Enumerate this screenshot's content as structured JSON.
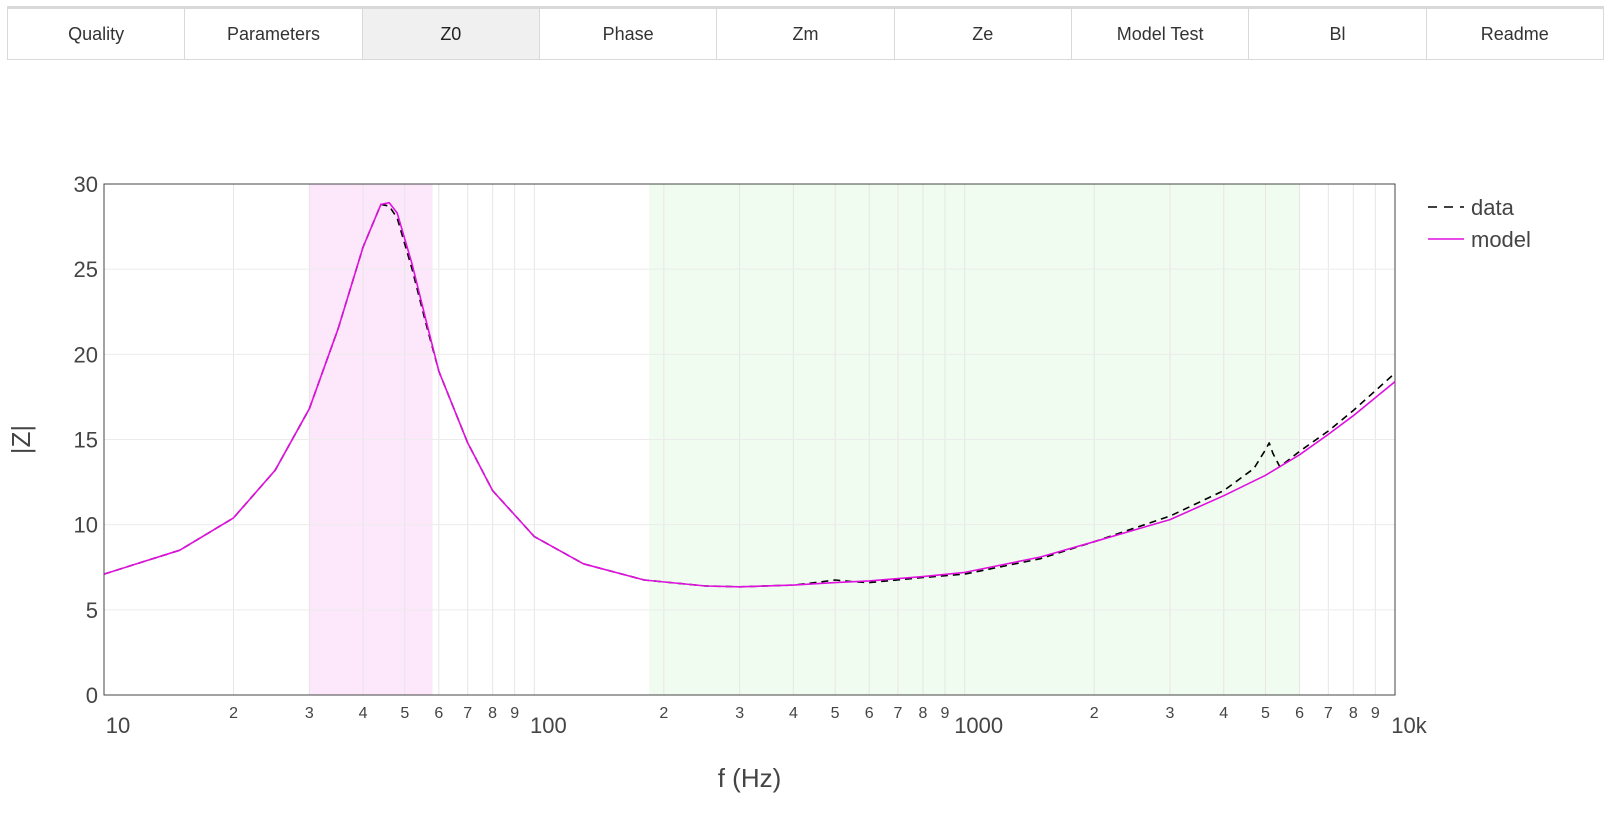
{
  "tabs": [
    {
      "label": "Quality",
      "active": false
    },
    {
      "label": "Parameters",
      "active": false
    },
    {
      "label": "Z0",
      "active": true
    },
    {
      "label": "Phase",
      "active": false
    },
    {
      "label": "Zm",
      "active": false
    },
    {
      "label": "Ze",
      "active": false
    },
    {
      "label": "Model Test",
      "active": false
    },
    {
      "label": "Bl",
      "active": false
    },
    {
      "label": "Readme",
      "active": false
    }
  ],
  "chart_data": {
    "type": "line",
    "xlabel": "f (Hz)",
    "ylabel": "|Z|",
    "xscale": "log",
    "xlim": [
      10,
      10000
    ],
    "ylim": [
      0,
      30
    ],
    "yticks": [
      0,
      5,
      10,
      15,
      20,
      25,
      30
    ],
    "xticks_major": [
      {
        "value": 10,
        "label": "10"
      },
      {
        "value": 100,
        "label": "100"
      },
      {
        "value": 1000,
        "label": "1000"
      },
      {
        "value": 10000,
        "label": "10k"
      }
    ],
    "xticks_minor_labels": [
      "2",
      "3",
      "4",
      "5",
      "6",
      "7",
      "8",
      "9"
    ],
    "grid": true,
    "legend_position": "right",
    "shaded_regions": [
      {
        "from": 30,
        "to": 58,
        "color": "#fde8fb"
      },
      {
        "from": 185,
        "to": 6000,
        "color": "#f0fcef"
      }
    ],
    "series": [
      {
        "name": "data",
        "color": "#000000",
        "style": "dashed",
        "x": [
          10,
          15,
          20,
          25,
          30,
          35,
          40,
          44,
          46,
          48,
          52,
          56,
          60,
          70,
          80,
          100,
          130,
          180,
          250,
          300,
          400,
          450,
          500,
          550,
          600,
          800,
          1000,
          1500,
          2000,
          3000,
          4000,
          4700,
          5000,
          5100,
          5200,
          5400,
          6000,
          7000,
          8000,
          10000
        ],
        "y": [
          7.1,
          8.5,
          10.4,
          13.2,
          16.8,
          21.5,
          26.3,
          28.8,
          28.7,
          28.0,
          25.0,
          21.8,
          19.0,
          14.8,
          12.0,
          9.3,
          7.7,
          6.75,
          6.4,
          6.35,
          6.45,
          6.6,
          6.75,
          6.65,
          6.6,
          6.9,
          7.1,
          8.0,
          9.0,
          10.5,
          12.0,
          13.3,
          14.4,
          14.8,
          14.2,
          13.4,
          14.3,
          15.5,
          16.7,
          18.9
        ]
      },
      {
        "name": "model",
        "color": "#e010e0",
        "style": "solid",
        "x": [
          10,
          15,
          20,
          25,
          30,
          35,
          40,
          44,
          46,
          48,
          52,
          56,
          60,
          70,
          80,
          100,
          130,
          180,
          250,
          300,
          400,
          500,
          600,
          800,
          1000,
          1500,
          2000,
          3000,
          4000,
          5000,
          6000,
          7000,
          8000,
          10000
        ],
        "y": [
          7.1,
          8.5,
          10.4,
          13.2,
          16.8,
          21.5,
          26.3,
          28.8,
          28.9,
          28.3,
          25.3,
          22.0,
          19.0,
          14.8,
          12.0,
          9.3,
          7.7,
          6.75,
          6.4,
          6.35,
          6.45,
          6.6,
          6.7,
          6.95,
          7.2,
          8.1,
          9.0,
          10.3,
          11.7,
          12.9,
          14.1,
          15.3,
          16.4,
          18.4
        ]
      }
    ]
  }
}
